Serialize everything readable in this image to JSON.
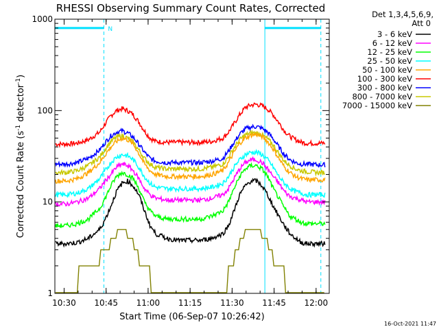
{
  "chart_data": {
    "type": "line",
    "title": "RHESSI Observing Summary Count Rates, Corrected",
    "xlabel": "Start Time (06-Sep-07 10:26:42)",
    "ylabel_parts": [
      "Corrected Count Rate (s",
      "-1",
      " detector",
      "-1",
      ")"
    ],
    "x_unit": "minutes since 10:26:42",
    "xlim": [
      0,
      98
    ],
    "ylim": [
      1,
      1000
    ],
    "yscale": "log",
    "x_ticks": [
      {
        "label": "10:30",
        "value": 3.3
      },
      {
        "label": "10:45",
        "value": 18.3
      },
      {
        "label": "11:00",
        "value": 33.3
      },
      {
        "label": "11:15",
        "value": 48.3
      },
      {
        "label": "11:30",
        "value": 63.3
      },
      {
        "label": "11:45",
        "value": 78.3
      },
      {
        "label": "12:00",
        "value": 93.3
      }
    ],
    "y_ticks": [
      {
        "label": "1",
        "value": 1
      },
      {
        "label": "10",
        "value": 10
      },
      {
        "label": "100",
        "value": 100
      },
      {
        "label": "1000",
        "value": 1000
      }
    ],
    "legend": {
      "header": [
        "Det 1,3,4,5,6,9,",
        "Att 0"
      ],
      "position": "top-right outside"
    },
    "x": [
      0,
      4,
      8,
      12,
      16,
      18,
      20,
      22,
      24,
      26,
      28,
      30,
      32,
      34,
      36,
      40,
      44,
      48,
      52,
      56,
      60,
      62,
      64,
      66,
      68,
      70,
      72,
      74,
      76,
      78,
      80,
      82,
      84,
      86,
      88,
      90,
      94,
      98
    ],
    "series": [
      {
        "name": "3 - 6 keV",
        "color": "#000000",
        "values": [
          3.5,
          3.5,
          3.6,
          4.0,
          5.0,
          6.5,
          9,
          13,
          16,
          17,
          15,
          12,
          8,
          5.5,
          4.5,
          4.0,
          3.8,
          3.8,
          3.8,
          4.0,
          4.5,
          5.5,
          8,
          12,
          15,
          17,
          17,
          15,
          12,
          9,
          7,
          5.5,
          4.5,
          4.0,
          3.6,
          3.5,
          3.5,
          3.5
        ]
      },
      {
        "name": "6 - 12 keV",
        "color": "#ff00ff",
        "values": [
          9.5,
          9.5,
          10,
          11,
          14,
          17,
          20,
          24,
          26,
          25,
          22,
          18,
          14,
          12,
          11,
          10.5,
          10.5,
          10.5,
          10.5,
          11,
          12,
          14,
          18,
          23,
          27,
          29,
          29,
          27,
          23,
          19,
          16,
          13,
          11.5,
          11,
          10.5,
          10,
          10,
          10
        ]
      },
      {
        "name": "12 - 25 keV",
        "color": "#00ff00",
        "values": [
          5.5,
          5.5,
          5.8,
          6.5,
          8.5,
          11,
          15,
          19,
          21,
          20,
          18,
          14,
          10,
          8,
          7,
          6.5,
          6.5,
          6.5,
          6.5,
          7,
          8,
          10,
          14,
          19,
          23,
          25,
          25,
          23,
          19,
          14,
          11,
          8.5,
          7,
          6.5,
          6,
          5.8,
          5.8,
          5.8
        ]
      },
      {
        "name": "25 - 50 keV",
        "color": "#00ffff",
        "values": [
          12,
          12,
          12.5,
          14,
          18,
          22,
          27,
          31,
          33,
          32,
          29,
          24,
          19,
          16,
          14.5,
          14,
          14,
          14,
          14,
          14.5,
          16,
          19,
          24,
          29,
          33,
          35,
          35,
          33,
          29,
          24,
          19,
          16,
          14,
          13,
          12.5,
          12,
          12,
          12
        ]
      },
      {
        "name": "50 - 100 keV",
        "color": "#ffa500",
        "values": [
          17,
          17,
          18,
          21,
          27,
          33,
          40,
          46,
          50,
          48,
          43,
          34,
          26,
          22,
          20,
          19,
          19,
          19,
          19,
          20,
          22,
          27,
          35,
          44,
          50,
          54,
          55,
          52,
          46,
          38,
          30,
          24,
          21,
          19,
          18,
          17.5,
          17.5,
          17.5
        ]
      },
      {
        "name": "100 - 300 keV",
        "color": "#ff0000",
        "values": [
          43,
          43,
          44,
          48,
          58,
          72,
          88,
          100,
          105,
          100,
          90,
          75,
          60,
          50,
          46,
          45,
          45,
          45,
          45,
          46,
          50,
          58,
          72,
          90,
          108,
          115,
          117,
          113,
          104,
          90,
          74,
          60,
          52,
          48,
          45,
          44,
          44,
          44
        ]
      },
      {
        "name": "300 - 800 keV",
        "color": "#0000ff",
        "values": [
          26,
          26,
          27,
          30,
          37,
          45,
          53,
          58,
          60,
          57,
          51,
          43,
          35,
          30,
          28,
          27,
          27,
          27,
          27,
          28,
          30,
          36,
          45,
          55,
          63,
          66,
          67,
          64,
          58,
          49,
          40,
          33,
          29,
          27,
          26,
          26,
          25.5,
          25.5
        ]
      },
      {
        "name": "800 - 7000 keV",
        "color": "#c8c800",
        "values": [
          21,
          21,
          22,
          25,
          31,
          38,
          46,
          51,
          53,
          50,
          45,
          37,
          30,
          26,
          24,
          23,
          23,
          23,
          23,
          24,
          26,
          31,
          39,
          48,
          54,
          57,
          57,
          54,
          49,
          42,
          34,
          28,
          25,
          23,
          22,
          21.5,
          21,
          21
        ]
      },
      {
        "name": "7000 - 15000 keV",
        "color": "#808000",
        "values": [
          1.2,
          1.2,
          1.5,
          2.0,
          2.5,
          3.0,
          3.5,
          4.5,
          5.0,
          4.5,
          3.5,
          2.5,
          2.0,
          1.5,
          1.2,
          1.0,
          1.0,
          1.0,
          1.0,
          1.0,
          1.2,
          1.5,
          2.5,
          3.5,
          4.5,
          5.0,
          5.0,
          4.5,
          3.5,
          2.5,
          2.0,
          1.5,
          1.2,
          1.0,
          1.0,
          1.0,
          1.0,
          1.0
        ]
      }
    ],
    "night_intervals": [
      [
        0,
        17.5
      ],
      [
        75,
        95
      ]
    ],
    "night_marker_label": "N",
    "grid": false
  },
  "footer": {
    "timestamp": "16-Oct-2021 11:47"
  }
}
